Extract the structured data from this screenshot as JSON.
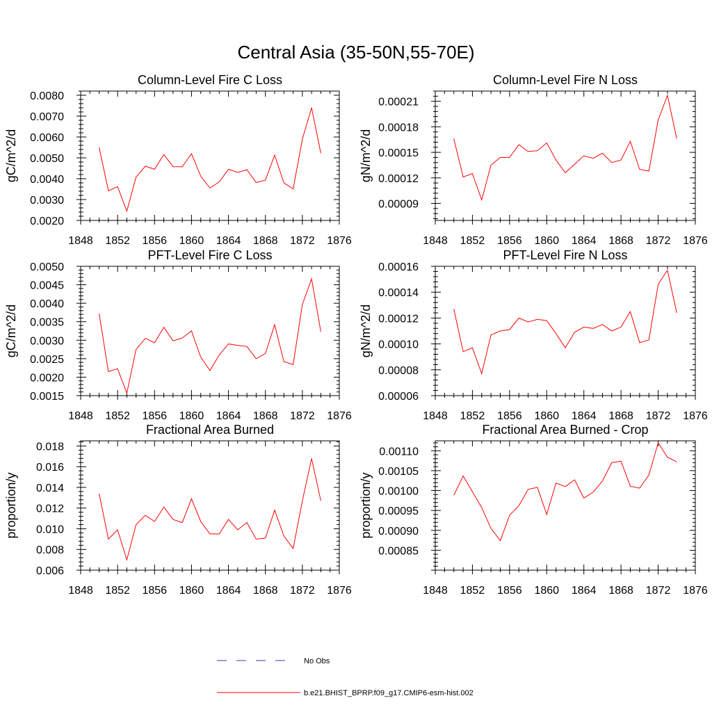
{
  "title": "Central Asia (35-50N,55-70E)",
  "colors": {
    "model": "#ff0000",
    "obs": "#3a3aa8",
    "axis": "#000000"
  },
  "legend": [
    {
      "label": "No Obs",
      "style": "dashed",
      "color": "#3a3aa8"
    },
    {
      "label": "b.e21.BHIST_BPRP.f09_g17.CMIP6-esm-hist.002",
      "style": "solid",
      "color": "#ff0000"
    }
  ],
  "chart_data": [
    {
      "type": "line",
      "title": "Column-Level Fire C Loss",
      "ylabel": "gC/m^2/d",
      "xlim": [
        1848,
        1876
      ],
      "ylim": [
        0.002,
        0.0082
      ],
      "xticks": [
        "1848",
        "1852",
        "1856",
        "1860",
        "1864",
        "1868",
        "1872",
        "1876"
      ],
      "yticks": [
        "0.0020",
        "0.0030",
        "0.0040",
        "0.0050",
        "0.0060",
        "0.0070",
        "0.0080"
      ],
      "x": [
        1850,
        1851,
        1852,
        1853,
        1854,
        1855,
        1856,
        1857,
        1858,
        1859,
        1860,
        1861,
        1862,
        1863,
        1864,
        1865,
        1866,
        1867,
        1868,
        1869,
        1870,
        1871,
        1872,
        1873,
        1874
      ],
      "series": [
        {
          "name": "b.e21.BHIST_BPRP.f09_g17.CMIP6-esm-hist.002",
          "values": [
            0.0055,
            0.00342,
            0.00362,
            0.00245,
            0.00408,
            0.0046,
            0.00445,
            0.00516,
            0.00458,
            0.00457,
            0.0052,
            0.00412,
            0.00355,
            0.00385,
            0.00445,
            0.0043,
            0.00443,
            0.00382,
            0.00393,
            0.00513,
            0.0038,
            0.00351,
            0.0059,
            0.0074,
            0.00522
          ]
        }
      ]
    },
    {
      "type": "line",
      "title": "Column-Level Fire N Loss",
      "ylabel": "gN/m^2/d",
      "xlim": [
        1848,
        1876
      ],
      "ylim": [
        7e-05,
        0.000222
      ],
      "xticks": [
        "1848",
        "1852",
        "1856",
        "1860",
        "1864",
        "1868",
        "1872",
        "1876"
      ],
      "yticks": [
        "0.00009",
        "0.00012",
        "0.00015",
        "0.00018",
        "0.00021"
      ],
      "x": [
        1850,
        1851,
        1852,
        1853,
        1854,
        1855,
        1856,
        1857,
        1858,
        1859,
        1860,
        1861,
        1862,
        1863,
        1864,
        1865,
        1866,
        1867,
        1868,
        1869,
        1870,
        1871,
        1872,
        1873,
        1874
      ],
      "series": [
        {
          "name": "b.e21.BHIST_BPRP.f09_g17.CMIP6-esm-hist.002",
          "values": [
            0.000166,
            0.000121,
            0.000125,
            9.4e-05,
            0.000135,
            0.000144,
            0.000144,
            0.000159,
            0.000151,
            0.000152,
            0.000161,
            0.000141,
            0.000126,
            0.000136,
            0.000146,
            0.000143,
            0.000149,
            0.000138,
            0.000141,
            0.000163,
            0.00013,
            0.000128,
            0.000188,
            0.000217,
            0.000166
          ]
        }
      ]
    },
    {
      "type": "line",
      "title": "PFT-Level Fire C Loss",
      "ylabel": "gC/m^2/d",
      "xlim": [
        1848,
        1876
      ],
      "ylim": [
        0.0015,
        0.005
      ],
      "xticks": [
        "1848",
        "1852",
        "1856",
        "1860",
        "1864",
        "1868",
        "1872",
        "1876"
      ],
      "yticks": [
        "0.0015",
        "0.0020",
        "0.0025",
        "0.0030",
        "0.0035",
        "0.0040",
        "0.0045",
        "0.0050"
      ],
      "x": [
        1850,
        1851,
        1852,
        1853,
        1854,
        1855,
        1856,
        1857,
        1858,
        1859,
        1860,
        1861,
        1862,
        1863,
        1864,
        1865,
        1866,
        1867,
        1868,
        1869,
        1870,
        1871,
        1872,
        1873,
        1874
      ],
      "series": [
        {
          "name": "b.e21.BHIST_BPRP.f09_g17.CMIP6-esm-hist.002",
          "values": [
            0.00372,
            0.00215,
            0.00223,
            0.00157,
            0.00275,
            0.00305,
            0.00293,
            0.00335,
            0.00298,
            0.00306,
            0.00325,
            0.00254,
            0.00218,
            0.0026,
            0.0029,
            0.00286,
            0.00283,
            0.0025,
            0.00264,
            0.00342,
            0.00242,
            0.00234,
            0.00397,
            0.00466,
            0.00323
          ]
        }
      ]
    },
    {
      "type": "line",
      "title": "PFT-Level Fire N Loss",
      "ylabel": "gN/m^2/d",
      "xlim": [
        1848,
        1876
      ],
      "ylim": [
        6e-05,
        0.00016
      ],
      "xticks": [
        "1848",
        "1852",
        "1856",
        "1860",
        "1864",
        "1868",
        "1872",
        "1876"
      ],
      "yticks": [
        "0.00006",
        "0.00008",
        "0.00010",
        "0.00012",
        "0.00014",
        "0.00016"
      ],
      "x": [
        1850,
        1851,
        1852,
        1853,
        1854,
        1855,
        1856,
        1857,
        1858,
        1859,
        1860,
        1861,
        1862,
        1863,
        1864,
        1865,
        1866,
        1867,
        1868,
        1869,
        1870,
        1871,
        1872,
        1873,
        1874
      ],
      "series": [
        {
          "name": "b.e21.BHIST_BPRP.f09_g17.CMIP6-esm-hist.002",
          "values": [
            0.000127,
            9.4e-05,
            9.7e-05,
            7.7e-05,
            0.000107,
            0.00011,
            0.000111,
            0.00012,
            0.000117,
            0.000119,
            0.000118,
            0.000108,
            9.7e-05,
            0.000109,
            0.000113,
            0.000112,
            0.000115,
            0.00011,
            0.000113,
            0.000125,
            0.000101,
            0.000103,
            0.000146,
            0.000157,
            0.000124
          ]
        }
      ]
    },
    {
      "type": "line",
      "title": "Fractional Area Burned",
      "ylabel": "proportion/y",
      "xlim": [
        1848,
        1876
      ],
      "ylim": [
        0.006,
        0.0185
      ],
      "xticks": [
        "1848",
        "1852",
        "1856",
        "1860",
        "1864",
        "1868",
        "1872",
        "1876"
      ],
      "yticks": [
        "0.006",
        "0.008",
        "0.010",
        "0.012",
        "0.014",
        "0.016",
        "0.018"
      ],
      "x": [
        1850,
        1851,
        1852,
        1853,
        1854,
        1855,
        1856,
        1857,
        1858,
        1859,
        1860,
        1861,
        1862,
        1863,
        1864,
        1865,
        1866,
        1867,
        1868,
        1869,
        1870,
        1871,
        1872,
        1873,
        1874
      ],
      "series": [
        {
          "name": "b.e21.BHIST_BPRP.f09_g17.CMIP6-esm-hist.002",
          "values": [
            0.0134,
            0.009,
            0.0099,
            0.007,
            0.0104,
            0.0113,
            0.0107,
            0.0121,
            0.0109,
            0.0106,
            0.0129,
            0.0107,
            0.0095,
            0.0095,
            0.0109,
            0.0099,
            0.0106,
            0.009,
            0.0091,
            0.0118,
            0.0093,
            0.0081,
            0.0127,
            0.0168,
            0.0127
          ]
        }
      ]
    },
    {
      "type": "line",
      "title": "Fractional Area Burned - Crop",
      "ylabel": "proportion/y",
      "xlim": [
        1848,
        1876
      ],
      "ylim": [
        0.0008,
        0.001125
      ],
      "xticks": [
        "1848",
        "1852",
        "1856",
        "1860",
        "1864",
        "1868",
        "1872",
        "1876"
      ],
      "yticks": [
        "0.00085",
        "0.00090",
        "0.00095",
        "0.00100",
        "0.00105",
        "0.00110"
      ],
      "x": [
        1850,
        1851,
        1852,
        1853,
        1854,
        1855,
        1856,
        1857,
        1858,
        1859,
        1860,
        1861,
        1862,
        1863,
        1864,
        1865,
        1866,
        1867,
        1868,
        1869,
        1870,
        1871,
        1872,
        1873,
        1874
      ],
      "series": [
        {
          "name": "b.e21.BHIST_BPRP.f09_g17.CMIP6-esm-hist.002",
          "values": [
            0.000988,
            0.001037,
            0.000997,
            0.000957,
            0.000905,
            0.000874,
            0.000938,
            0.000962,
            0.001003,
            0.001008,
            0.00094,
            0.001019,
            0.00101,
            0.001027,
            0.000981,
            0.000996,
            0.001024,
            0.00107,
            0.001074,
            0.001011,
            0.001006,
            0.001039,
            0.00112,
            0.001084,
            0.001072
          ]
        }
      ]
    }
  ]
}
